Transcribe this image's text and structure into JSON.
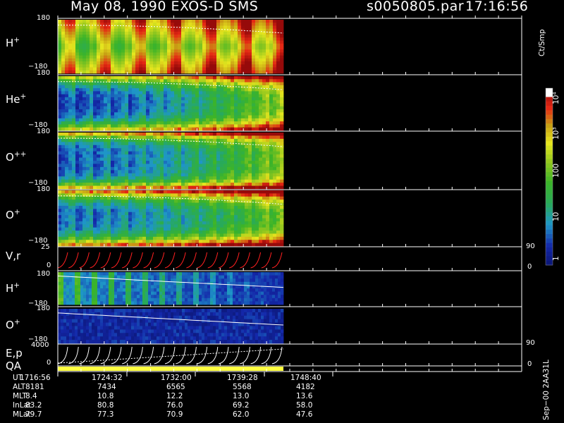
{
  "header": {
    "title": "May 08, 1990   EXOS-D SMS",
    "file": "s0050805.par",
    "time": "17:16:56"
  },
  "colors": {
    "background": "#000000",
    "axes": "#ffffff",
    "overlay_line": "#ffffff",
    "velocity_trace": "#ff2020",
    "qa_bar": "#ffff40"
  },
  "panels": [
    {
      "id": "h_plus_a",
      "label_base": "H",
      "label_sup": "+",
      "ytick_top": "180",
      "ytick_bottom": "−180"
    },
    {
      "id": "he_plus",
      "label_base": "He",
      "label_sup": "+",
      "ytick_top": "180",
      "ytick_bottom": "−180"
    },
    {
      "id": "o_plusplus",
      "label_base": "O",
      "label_sup": "++",
      "ytick_top": "180",
      "ytick_bottom": "−180"
    },
    {
      "id": "o_plus_a",
      "label_base": "O",
      "label_sup": "+",
      "ytick_top": "180",
      "ytick_bottom": "−180"
    },
    {
      "id": "vr",
      "label_base": "V,r",
      "label_sup": "",
      "ytick_top": "25",
      "ytick_bottom": "0",
      "right_top": "90",
      "right_bottom": "0"
    },
    {
      "id": "h_plus_b",
      "label_base": "H",
      "label_sup": "+",
      "ytick_top": "180",
      "ytick_bottom": "−180"
    },
    {
      "id": "o_plus_b",
      "label_base": "O",
      "label_sup": "+",
      "ytick_top": "180",
      "ytick_bottom": "−180"
    },
    {
      "id": "ep",
      "label_base": "E,p",
      "label_sup": "",
      "ytick_top": "4000",
      "ytick_bottom": "0",
      "right_top": "90",
      "right_bottom": "0"
    }
  ],
  "qa_label": "QA",
  "colorbar": {
    "unit": "Ct/Smp",
    "ticks": [
      "10⁴",
      "10³",
      "100",
      "10",
      "1"
    ]
  },
  "ephemeris": {
    "rows": [
      {
        "name": "UT",
        "values": [
          "1716:56",
          "1724:32",
          "1732:00",
          "1739:28",
          "1748:40"
        ]
      },
      {
        "name": "ALT",
        "values": [
          "8181",
          "7434",
          "6565",
          "5568",
          "4182"
        ]
      },
      {
        "name": "MLT",
        "values": [
          "8.4",
          "10.8",
          "12.2",
          "13.0",
          "13.6"
        ]
      },
      {
        "name": "InLat",
        "values": [
          "83.2",
          "80.8",
          "76.0",
          "69.2",
          "58.0"
        ]
      },
      {
        "name": "MLat",
        "values": [
          "79.7",
          "77.3",
          "70.9",
          "62.0",
          "47.6"
        ]
      }
    ]
  },
  "footer_code": "Sep−00  2AA31L",
  "chart_data": {
    "type": "heatmap",
    "title": "May 08, 1990   EXOS-D SMS",
    "x": [
      "1716:56",
      "1724:32",
      "1732:00",
      "1739:28",
      "1748:40"
    ],
    "xlabel": "UT",
    "series": [
      {
        "name": "H+",
        "ylim": [
          -180,
          180
        ]
      },
      {
        "name": "He+",
        "ylim": [
          -180,
          180
        ]
      },
      {
        "name": "O++",
        "ylim": [
          -180,
          180
        ]
      },
      {
        "name": "O+",
        "ylim": [
          -180,
          180
        ]
      },
      {
        "name": "V,r",
        "ylim": [
          0,
          25
        ],
        "right_ylim": [
          0,
          90
        ]
      },
      {
        "name": "H+",
        "ylim": [
          -180,
          180
        ]
      },
      {
        "name": "O+",
        "ylim": [
          -180,
          180
        ]
      },
      {
        "name": "E,p",
        "ylim": [
          0,
          4000
        ],
        "right_ylim": [
          0,
          90
        ]
      }
    ],
    "color_scale": {
      "type": "log",
      "unit": "Ct/Smp",
      "range": [
        1,
        10000
      ]
    }
  }
}
